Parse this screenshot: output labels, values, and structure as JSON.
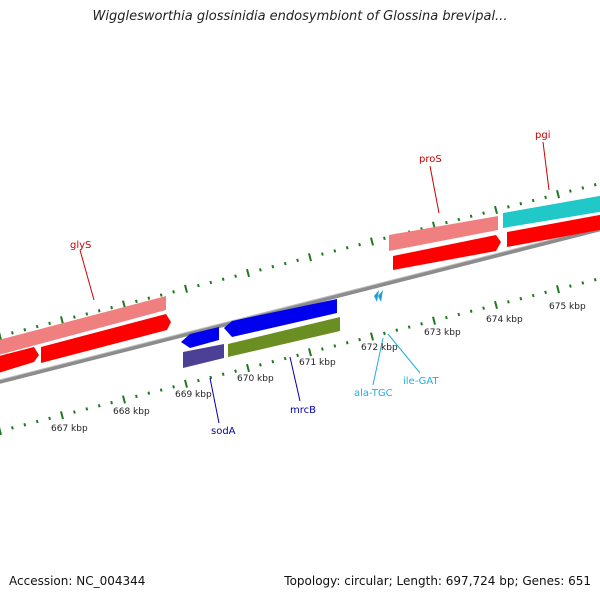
{
  "title": "Wigglesworthia glossinidia endosymbiont of Glossina brevipal...",
  "footer": {
    "accession": "Accession: NC_004344",
    "topology": "Topology: circular; Length: 697,724 bp; Genes: 651"
  },
  "colors": {
    "backbone": "#8c8c8c",
    "tick": "#1e7a1e",
    "rna_gene": "#f08080",
    "cds_red": "#ff0000",
    "cds_blue": "#0000ee",
    "cds_navy": "#4b4096",
    "cds_olive": "#6b8e23",
    "cds_cyan": "#20c8c8",
    "trna": "#20a0d0"
  },
  "kbp_labels": [
    "667 kbp",
    "668 kbp",
    "669 kbp",
    "670 kbp",
    "671 kbp",
    "672 kbp",
    "673 kbp",
    "674 kbp",
    "675 kbp"
  ],
  "gene_labels": {
    "glyS": "glyS",
    "proS": "proS",
    "pgi": "pgi",
    "sodA": "sodA",
    "mrcB": "mrcB",
    "alaTGC": "ala-TGC",
    "ileGAT": "ile-GAT"
  }
}
